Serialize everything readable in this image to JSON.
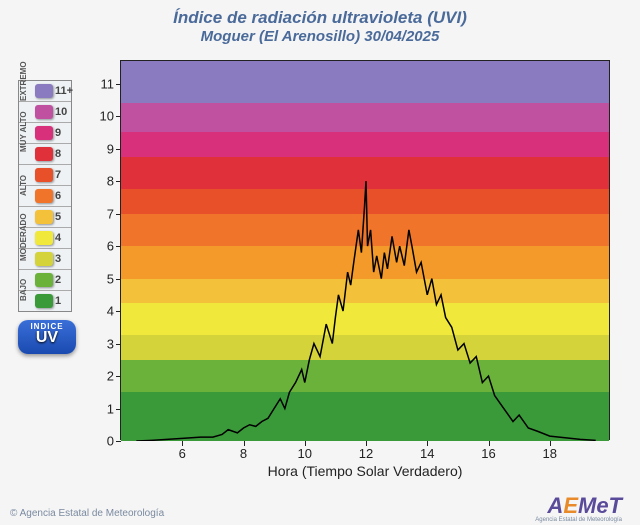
{
  "title": "Índice de radiación ultravioleta (UVI)",
  "subtitle": "Moguer (El Arenosillo) 30/04/2025",
  "xlabel": "Hora (Tiempo Solar Verdadero)",
  "chart": {
    "type": "line-with-bands",
    "xlim": [
      4,
      20
    ],
    "ylim": [
      0,
      11.7
    ],
    "xticks": [
      6,
      8,
      10,
      12,
      14,
      16,
      18
    ],
    "yticks": [
      0,
      1,
      2,
      3,
      4,
      5,
      6,
      7,
      8,
      9,
      10,
      11
    ],
    "line_color": "#000000",
    "line_width": 1.5,
    "background_color": "#ffffff",
    "bands": [
      {
        "from": 0,
        "to": 1.5,
        "color": "#3a9a3a"
      },
      {
        "from": 1.5,
        "to": 2.5,
        "color": "#6ab23a"
      },
      {
        "from": 2.5,
        "to": 3.25,
        "color": "#d4d43a"
      },
      {
        "from": 3.25,
        "to": 4.25,
        "color": "#f0e83a"
      },
      {
        "from": 4.25,
        "to": 5.0,
        "color": "#f4c23a"
      },
      {
        "from": 5.0,
        "to": 6.0,
        "color": "#f49a2a"
      },
      {
        "from": 6.0,
        "to": 7.0,
        "color": "#f0742a"
      },
      {
        "from": 7.0,
        "to": 7.75,
        "color": "#e8502a"
      },
      {
        "from": 7.75,
        "to": 8.75,
        "color": "#e0303a"
      },
      {
        "from": 8.75,
        "to": 9.5,
        "color": "#d8307a"
      },
      {
        "from": 9.5,
        "to": 10.4,
        "color": "#c050a0"
      },
      {
        "from": 10.4,
        "to": 11.7,
        "color": "#8a7ac0"
      }
    ],
    "series_x": [
      4.5,
      5,
      5.5,
      6,
      6.3,
      6.6,
      7,
      7.3,
      7.5,
      7.8,
      8,
      8.2,
      8.4,
      8.6,
      8.8,
      9,
      9.2,
      9.35,
      9.5,
      9.7,
      9.9,
      10,
      10.15,
      10.3,
      10.5,
      10.7,
      10.9,
      11,
      11.1,
      11.25,
      11.4,
      11.5,
      11.6,
      11.75,
      11.85,
      11.95,
      12,
      12.05,
      12.15,
      12.25,
      12.35,
      12.5,
      12.6,
      12.7,
      12.85,
      13,
      13.1,
      13.25,
      13.4,
      13.5,
      13.65,
      13.8,
      14,
      14.15,
      14.3,
      14.45,
      14.6,
      14.8,
      15,
      15.2,
      15.4,
      15.6,
      15.8,
      16,
      16.2,
      16.5,
      16.8,
      17,
      17.3,
      17.6,
      18,
      18.5,
      19,
      19.5
    ],
    "series_y": [
      0,
      0.02,
      0.05,
      0.08,
      0.1,
      0.12,
      0.12,
      0.2,
      0.35,
      0.25,
      0.4,
      0.5,
      0.45,
      0.6,
      0.7,
      1.0,
      1.3,
      1.0,
      1.5,
      1.8,
      2.2,
      1.8,
      2.5,
      3.0,
      2.6,
      3.6,
      3.0,
      3.8,
      4.5,
      4.0,
      5.2,
      4.8,
      5.5,
      6.5,
      5.8,
      7.2,
      8.0,
      6.0,
      6.5,
      5.2,
      5.7,
      5.0,
      5.8,
      5.3,
      6.3,
      5.5,
      6.0,
      5.4,
      6.5,
      6.0,
      5.2,
      5.5,
      4.5,
      5.0,
      4.2,
      4.5,
      3.8,
      3.5,
      2.8,
      3.0,
      2.4,
      2.6,
      1.8,
      2.0,
      1.4,
      1.0,
      0.6,
      0.8,
      0.4,
      0.3,
      0.15,
      0.1,
      0.05,
      0.02
    ]
  },
  "legend": {
    "categories": [
      {
        "label": "EXTREMO",
        "rows": [
          {
            "num": "11+",
            "color": "#8a7ac0"
          }
        ]
      },
      {
        "label": "MUY ALTO",
        "rows": [
          {
            "num": "10",
            "color": "#c050a0"
          },
          {
            "num": "9",
            "color": "#d8307a"
          },
          {
            "num": "8",
            "color": "#e0303a"
          }
        ]
      },
      {
        "label": "ALTO",
        "rows": [
          {
            "num": "7",
            "color": "#e8502a"
          },
          {
            "num": "6",
            "color": "#f0742a"
          }
        ]
      },
      {
        "label": "MODERADO",
        "rows": [
          {
            "num": "5",
            "color": "#f4c23a"
          },
          {
            "num": "4",
            "color": "#f0e83a"
          },
          {
            "num": "3",
            "color": "#d4d43a"
          }
        ]
      },
      {
        "label": "BAJO",
        "rows": [
          {
            "num": "2",
            "color": "#6ab23a"
          },
          {
            "num": "1",
            "color": "#3a9a3a"
          }
        ]
      }
    ]
  },
  "uv_badge": {
    "line1": "INDICE",
    "line2": "UV"
  },
  "footer": {
    "copyright": "© Agencia Estatal de Meteorología",
    "logo_a": "A",
    "logo_e": "E",
    "logo_rest": "MeT",
    "tag": "Agencia Estatal de Meteorología"
  }
}
